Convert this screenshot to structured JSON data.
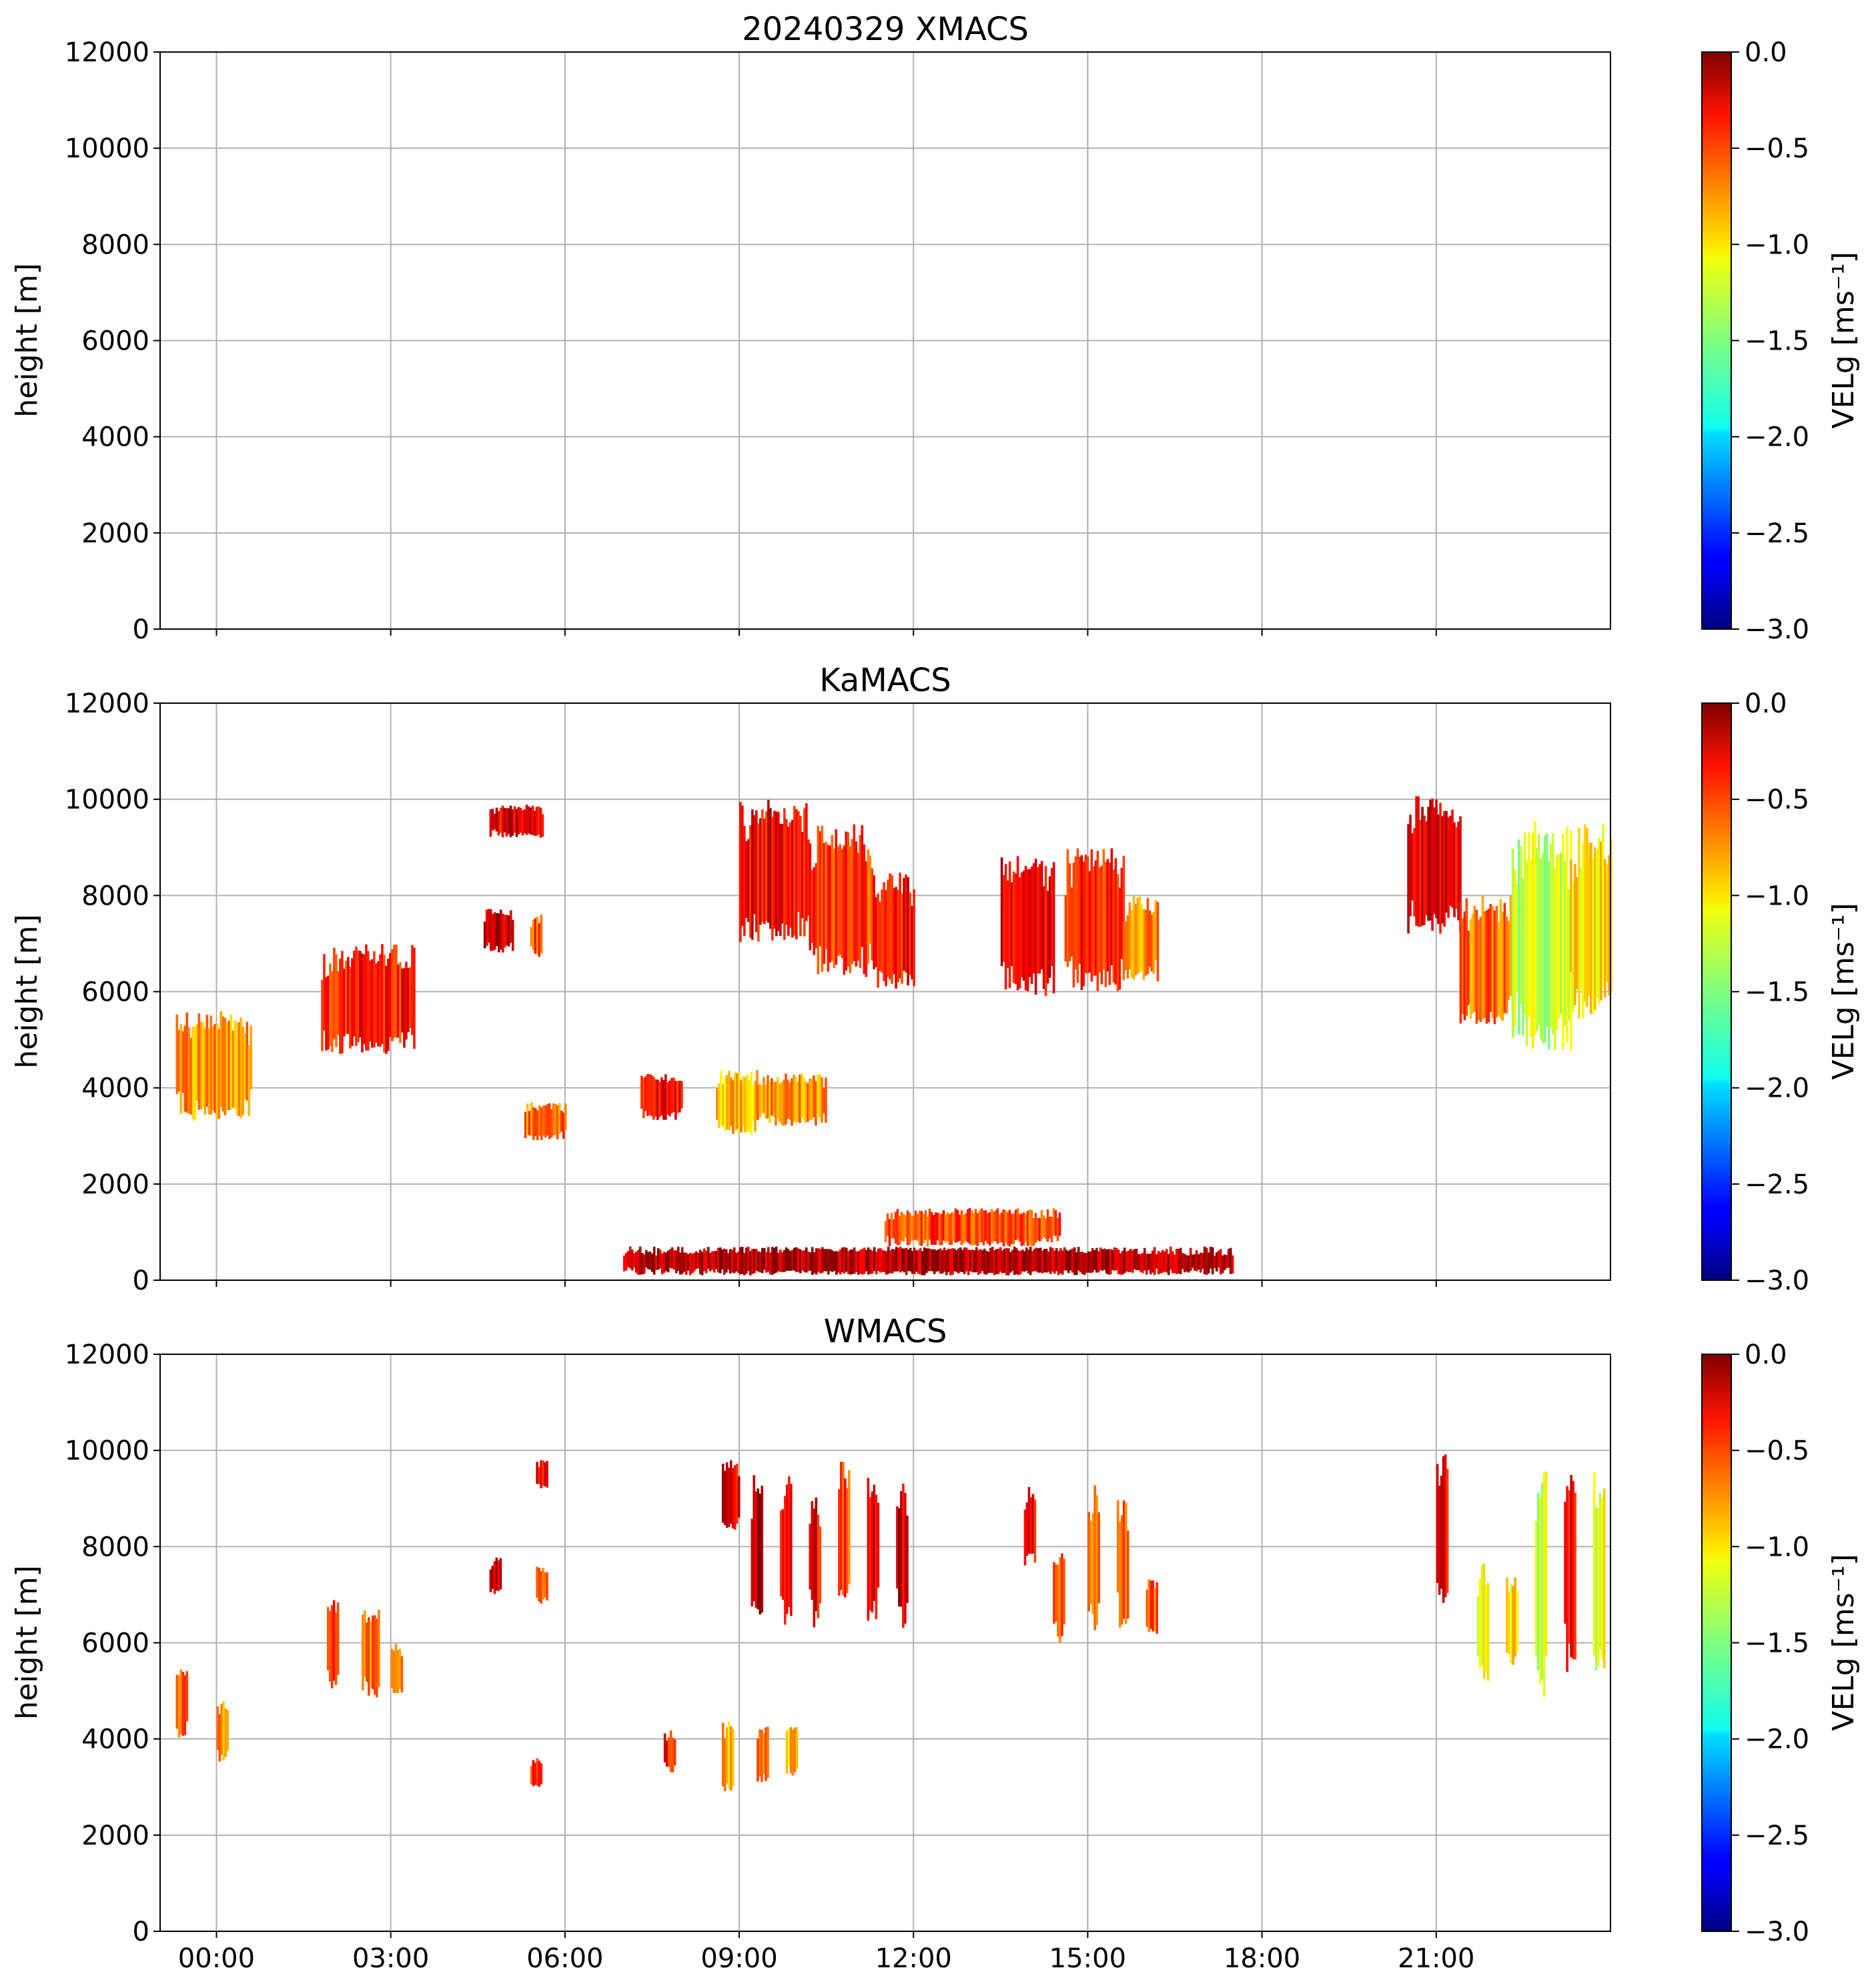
{
  "figure_title": "20240329 XMACS",
  "chart_data": [
    {
      "type": "heatmap",
      "title": "",
      "panel_id": "xmacs",
      "ylabel": "height [m]",
      "ylim": [
        0,
        12000
      ],
      "yticks": [
        "0",
        "2000",
        "4000",
        "6000",
        "8000",
        "10000",
        "12000"
      ],
      "x_tick_hours": [
        0,
        3,
        6,
        9,
        12,
        15,
        18,
        21
      ],
      "x_tick_labels": [
        "00:00",
        "03:00",
        "06:00",
        "09:00",
        "12:00",
        "15:00",
        "18:00",
        "21:00"
      ],
      "show_x_tick_labels": false,
      "grid": true,
      "colorbar": {
        "label": "VELg [ms⁻¹]",
        "ticks": [
          "0.0",
          "−0.5",
          "−1.0",
          "−1.5",
          "−2.0",
          "−2.5",
          "−3.0"
        ],
        "range": [
          -3.0,
          0.0
        ],
        "colormap": "jet"
      },
      "echoes": []
    },
    {
      "type": "heatmap",
      "title": "KaMACS",
      "panel_id": "kamacs",
      "ylabel": "height [m]",
      "ylim": [
        0,
        12000
      ],
      "yticks": [
        "0",
        "2000",
        "4000",
        "6000",
        "8000",
        "10000",
        "12000"
      ],
      "x_tick_hours": [
        0,
        3,
        6,
        9,
        12,
        15,
        18,
        21
      ],
      "x_tick_labels": [
        "00:00",
        "03:00",
        "06:00",
        "09:00",
        "12:00",
        "15:00",
        "18:00",
        "21:00"
      ],
      "show_x_tick_labels": false,
      "grid": true,
      "colorbar": {
        "label": "VELg [ms⁻¹]",
        "ticks": [
          "0.0",
          "−0.5",
          "−1.0",
          "−1.5",
          "−2.0",
          "−2.5",
          "−3.0"
        ],
        "range": [
          -3.0,
          0.0
        ],
        "colormap": "jet"
      },
      "echoes": [
        {
          "t0": -0.7,
          "t1": 0.6,
          "bot": 3300,
          "top": 5600,
          "vel": -0.8
        },
        {
          "t0": 1.8,
          "t1": 3.4,
          "bot": 4700,
          "top": 7000,
          "vel": -0.45
        },
        {
          "t0": 4.7,
          "t1": 5.6,
          "bot": 9200,
          "top": 9900,
          "vel": -0.3
        },
        {
          "t0": 4.6,
          "t1": 5.1,
          "bot": 6800,
          "top": 7800,
          "vel": -0.2
        },
        {
          "t0": 5.4,
          "t1": 5.6,
          "bot": 6700,
          "top": 7600,
          "vel": -0.6
        },
        {
          "t0": 5.3,
          "t1": 6.0,
          "bot": 2900,
          "top": 3700,
          "vel": -0.7
        },
        {
          "t0": 7.3,
          "t1": 8.0,
          "bot": 3300,
          "top": 4300,
          "vel": -0.4
        },
        {
          "t0": 8.6,
          "t1": 9.3,
          "bot": 3000,
          "top": 4400,
          "vel": -0.9
        },
        {
          "t0": 9.3,
          "t1": 10.5,
          "bot": 3200,
          "top": 4300,
          "vel": -0.8
        },
        {
          "t0": 9.0,
          "t1": 10.2,
          "bot": 7000,
          "top": 10000,
          "vel": -0.35
        },
        {
          "t0": 10.2,
          "t1": 11.3,
          "bot": 6300,
          "top": 9500,
          "vel": -0.55
        },
        {
          "t0": 11.3,
          "t1": 12.0,
          "bot": 6000,
          "top": 8500,
          "vel": -0.4
        },
        {
          "t0": 13.5,
          "t1": 14.4,
          "bot": 5900,
          "top": 8900,
          "vel": -0.3
        },
        {
          "t0": 14.6,
          "t1": 15.6,
          "bot": 6000,
          "top": 9000,
          "vel": -0.5
        },
        {
          "t0": 15.6,
          "t1": 16.2,
          "bot": 6200,
          "top": 8000,
          "vel": -0.8
        },
        {
          "t0": 20.5,
          "t1": 21.4,
          "bot": 7200,
          "top": 10100,
          "vel": -0.3
        },
        {
          "t0": 21.4,
          "t1": 22.3,
          "bot": 5200,
          "top": 8000,
          "vel": -0.7
        },
        {
          "t0": 22.3,
          "t1": 23.3,
          "bot": 4700,
          "top": 9600,
          "vel": -1.3
        },
        {
          "t0": 23.3,
          "t1": 24.0,
          "bot": 5300,
          "top": 9500,
          "vel": -1.1
        },
        {
          "t0": 7.0,
          "t1": 17.5,
          "bot": 100,
          "top": 700,
          "vel": -0.15
        },
        {
          "t0": 11.5,
          "t1": 14.5,
          "bot": 700,
          "top": 1500,
          "vel": -0.6
        }
      ]
    },
    {
      "type": "heatmap",
      "title": "WMACS",
      "panel_id": "wmacs",
      "ylabel": "height [m]",
      "ylim": [
        0,
        12000
      ],
      "yticks": [
        "0",
        "2000",
        "4000",
        "6000",
        "8000",
        "10000",
        "12000"
      ],
      "x_tick_hours": [
        0,
        3,
        6,
        9,
        12,
        15,
        18,
        21
      ],
      "x_tick_labels": [
        "00:00",
        "03:00",
        "06:00",
        "09:00",
        "12:00",
        "15:00",
        "18:00",
        "21:00"
      ],
      "show_x_tick_labels": true,
      "grid": true,
      "colorbar": {
        "label": "VELg [ms⁻¹]",
        "ticks": [
          "0.0",
          "−0.5",
          "−1.0",
          "−1.5",
          "−2.0",
          "−2.5",
          "−3.0"
        ],
        "range": [
          -3.0,
          0.0
        ],
        "colormap": "jet"
      },
      "echoes": [
        {
          "t0": -0.7,
          "t1": -0.5,
          "bot": 4000,
          "top": 5600,
          "vel": -0.7
        },
        {
          "t0": 0.0,
          "t1": 0.2,
          "bot": 3500,
          "top": 4800,
          "vel": -0.8
        },
        {
          "t0": 1.9,
          "t1": 2.1,
          "bot": 5000,
          "top": 7000,
          "vel": -0.5
        },
        {
          "t0": 2.5,
          "t1": 2.8,
          "bot": 4800,
          "top": 6800,
          "vel": -0.7
        },
        {
          "t0": 3.0,
          "t1": 3.2,
          "bot": 4900,
          "top": 6000,
          "vel": -0.8
        },
        {
          "t0": 4.7,
          "t1": 4.9,
          "bot": 7000,
          "top": 7800,
          "vel": -0.3
        },
        {
          "t0": 5.5,
          "t1": 5.7,
          "bot": 9200,
          "top": 9800,
          "vel": -0.3
        },
        {
          "t0": 5.5,
          "t1": 5.7,
          "bot": 6800,
          "top": 7600,
          "vel": -0.6
        },
        {
          "t0": 5.4,
          "t1": 5.6,
          "bot": 3000,
          "top": 3600,
          "vel": -0.5
        },
        {
          "t0": 7.7,
          "t1": 7.9,
          "bot": 3300,
          "top": 4200,
          "vel": -0.4
        },
        {
          "t0": 8.7,
          "t1": 8.9,
          "bot": 2900,
          "top": 4400,
          "vel": -0.9
        },
        {
          "t0": 9.3,
          "t1": 9.5,
          "bot": 3100,
          "top": 4300,
          "vel": -0.7
        },
        {
          "t0": 9.8,
          "t1": 10.0,
          "bot": 3200,
          "top": 4300,
          "vel": -0.9
        },
        {
          "t0": 8.7,
          "t1": 9.0,
          "bot": 8300,
          "top": 9900,
          "vel": -0.3
        },
        {
          "t0": 9.2,
          "t1": 9.4,
          "bot": 6500,
          "top": 9600,
          "vel": -0.15
        },
        {
          "t0": 9.7,
          "t1": 9.9,
          "bot": 6200,
          "top": 9500,
          "vel": -0.5
        },
        {
          "t0": 10.2,
          "t1": 10.4,
          "bot": 6300,
          "top": 9100,
          "vel": -0.35
        },
        {
          "t0": 10.7,
          "t1": 10.9,
          "bot": 6500,
          "top": 9800,
          "vel": -0.6
        },
        {
          "t0": 11.2,
          "t1": 11.4,
          "bot": 6400,
          "top": 9600,
          "vel": -0.4
        },
        {
          "t0": 11.7,
          "t1": 11.9,
          "bot": 6200,
          "top": 9500,
          "vel": -0.2
        },
        {
          "t0": 13.9,
          "t1": 14.1,
          "bot": 7600,
          "top": 9300,
          "vel": -0.4
        },
        {
          "t0": 14.4,
          "t1": 14.6,
          "bot": 6000,
          "top": 8000,
          "vel": -0.6
        },
        {
          "t0": 15.0,
          "t1": 15.2,
          "bot": 6200,
          "top": 9300,
          "vel": -0.7
        },
        {
          "t0": 15.5,
          "t1": 15.7,
          "bot": 6300,
          "top": 9000,
          "vel": -0.6
        },
        {
          "t0": 16.0,
          "t1": 16.2,
          "bot": 6100,
          "top": 7400,
          "vel": -0.6
        },
        {
          "t0": 21.0,
          "t1": 21.2,
          "bot": 6800,
          "top": 10000,
          "vel": -0.3
        },
        {
          "t0": 21.7,
          "t1": 21.9,
          "bot": 5200,
          "top": 7700,
          "vel": -1.2
        },
        {
          "t0": 22.2,
          "t1": 22.4,
          "bot": 5500,
          "top": 7500,
          "vel": -1.0
        },
        {
          "t0": 22.7,
          "t1": 22.9,
          "bot": 4700,
          "top": 9600,
          "vel": -1.3
        },
        {
          "t0": 23.2,
          "t1": 23.4,
          "bot": 5300,
          "top": 9500,
          "vel": -0.4
        },
        {
          "t0": 23.7,
          "t1": 23.9,
          "bot": 5400,
          "top": 9600,
          "vel": -1.2
        }
      ]
    }
  ]
}
